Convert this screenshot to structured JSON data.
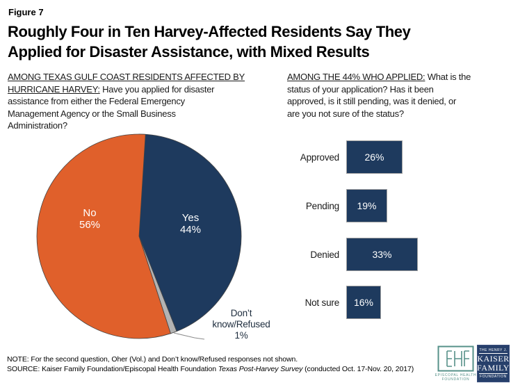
{
  "figure_label": "Figure 7",
  "title_line1": "Roughly Four in Ten Harvey-Affected Residents Say They",
  "title_line2": "Applied for Disaster Assistance, with Mixed Results",
  "left_question": {
    "lines": [
      {
        "u": "AMONG TEXAS GULF COAST RESIDENTS AFFECTED BY",
        "r": ""
      },
      {
        "u": "HURRICANE HARVEY:",
        "r": " Have you applied for disaster"
      },
      {
        "u": "",
        "r": "assistance from either the Federal Emergency"
      },
      {
        "u": "",
        "r": "Management Agency  or the Small Business"
      },
      {
        "u": "",
        "r": "Administration?"
      }
    ]
  },
  "right_question": {
    "lines": [
      {
        "u": "AMONG THE 44% WHO APPLIED:",
        "r": " What is the"
      },
      {
        "u": "",
        "r": "status of your application? Has it been"
      },
      {
        "u": "",
        "r": "approved, is it still pending, was it denied, or"
      },
      {
        "u": "",
        "r": "are you not sure of the status?"
      }
    ]
  },
  "chart_data": [
    {
      "type": "pie",
      "question": "AMONG TEXAS GULF COAST RESIDENTS AFFECTED BY HURRICANE HARVEY: Have you applied for disaster assistance from either the Federal Emergency Management Agency or the Small Business Administration?",
      "start_angle_deg": 0,
      "direction": "clockwise",
      "slices": [
        {
          "label": "Yes",
          "value": 44,
          "display": "44%",
          "color": "#1e3a5e",
          "text_color": "#ffffff"
        },
        {
          "label": "Don’t know/Refused",
          "value": 1,
          "display": "1%",
          "color": "#b3b3b3",
          "text_color": "#1d2c3d"
        },
        {
          "label": "No",
          "value": 56,
          "display": "56%",
          "color": "#e0602b",
          "text_color": "#ffffff"
        }
      ],
      "callout": {
        "lines": [
          "Don’t",
          "know/Refused",
          "1%"
        ]
      }
    },
    {
      "type": "bar",
      "orientation": "horizontal",
      "question": "AMONG THE 44% WHO APPLIED: What is the status of your application? Has it been approved, is it still pending, was it denied, or are you not sure of the status?",
      "categories": [
        "Approved",
        "Pending",
        "Denied",
        "Not sure"
      ],
      "values": [
        26,
        19,
        33,
        16
      ],
      "value_labels": [
        "26%",
        "19%",
        "33%",
        "16%"
      ],
      "bar_color": "#1e3a5e",
      "value_label_position": "inside-center",
      "xlim": [
        0,
        35
      ],
      "grid": false,
      "legend": "none"
    }
  ],
  "note": "NOTE: For the second question, Oher (Vol.) and Don’t know/Refused responses not shown.",
  "source": {
    "prefix": "SOURCE: Kaiser Family Foundation/Episcopal Health Foundation ",
    "italic": "Texas Post-Harvey Survey",
    "suffix": " (conducted Oct. 17-Nov. 20, 2017)"
  },
  "logos": {
    "ehf": {
      "caption_line1": "EPISCOPAL HEALTH",
      "caption_line2": "FOUNDATION",
      "color": "#569189"
    },
    "kff": {
      "top": "THE HENRY J.",
      "name1": "KAISER",
      "name2": "FAMILY",
      "bottom": "FOUNDATION",
      "bg": "#27406b"
    }
  },
  "colors": {
    "navy": "#1e3a5e",
    "orange": "#e0602b",
    "neutral_gray": "#b3b3b3",
    "pie_outline": "#444444",
    "bar_border": "#a0a0a0",
    "teal": "#569189",
    "kff_navy": "#27406b"
  }
}
